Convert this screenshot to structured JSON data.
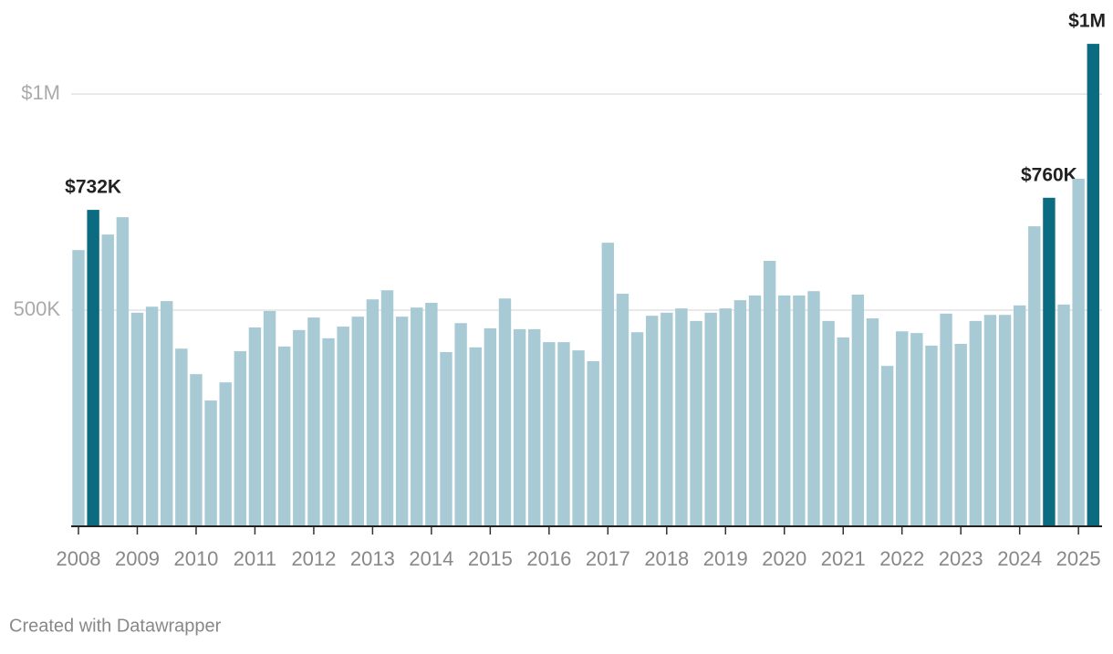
{
  "chart_data": {
    "type": "bar",
    "categories": [
      "2008",
      null,
      null,
      null,
      "2009",
      null,
      null,
      null,
      "2010",
      null,
      null,
      null,
      "2011",
      null,
      null,
      null,
      "2012",
      null,
      null,
      null,
      "2013",
      null,
      null,
      null,
      "2014",
      null,
      null,
      null,
      "2015",
      null,
      null,
      null,
      "2016",
      null,
      null,
      null,
      "2017",
      null,
      null,
      null,
      "2018",
      null,
      null,
      null,
      "2019",
      null,
      null,
      null,
      "2020",
      null,
      null,
      null,
      "2021",
      null,
      null,
      null,
      "2022",
      null,
      null,
      null,
      "2023",
      null,
      null,
      null,
      "2024",
      null,
      null,
      null,
      "2025",
      null
    ],
    "values": [
      639000,
      732000,
      675000,
      715000,
      494000,
      508000,
      521000,
      411000,
      352000,
      291000,
      333000,
      405000,
      460000,
      498000,
      416000,
      454000,
      483000,
      435000,
      462000,
      485000,
      525000,
      546000,
      485000,
      506000,
      517000,
      403000,
      470000,
      414000,
      458000,
      527000,
      456000,
      456000,
      426000,
      426000,
      407000,
      382000,
      656000,
      538000,
      449000,
      487000,
      494000,
      504000,
      475000,
      494000,
      504000,
      523000,
      534000,
      614000,
      534000,
      534000,
      544000,
      475000,
      437000,
      536000,
      481000,
      371000,
      451000,
      447000,
      418000,
      492000,
      422000,
      475000,
      489000,
      489000,
      511000,
      694000,
      760000,
      513000,
      804000,
      1116000
    ],
    "value_labels": [
      null,
      "$732K",
      null,
      null,
      null,
      null,
      null,
      null,
      null,
      null,
      null,
      null,
      null,
      null,
      null,
      null,
      null,
      null,
      null,
      null,
      null,
      null,
      null,
      null,
      null,
      null,
      null,
      null,
      null,
      null,
      null,
      null,
      null,
      null,
      null,
      null,
      null,
      null,
      null,
      null,
      null,
      null,
      null,
      null,
      null,
      null,
      null,
      null,
      null,
      null,
      null,
      null,
      null,
      null,
      null,
      null,
      null,
      null,
      null,
      null,
      null,
      null,
      null,
      null,
      null,
      null,
      "$760K",
      null,
      null,
      "$1M"
    ],
    "color": "#a8cad4",
    "highlight_color": "#0b6b81",
    "ylim": [
      0,
      1120000
    ],
    "yticks": [
      {
        "value": 500000,
        "label": "500K"
      },
      {
        "value": 1000000,
        "label": "$1M"
      }
    ],
    "grid": true
  },
  "footer": "Created with Datawrapper"
}
